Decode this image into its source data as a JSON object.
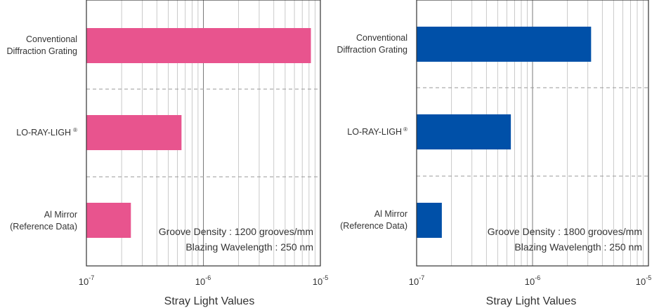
{
  "chart_data": [
    {
      "type": "bar",
      "orientation": "horizontal",
      "x_scale": "log",
      "xlim": [
        1e-07,
        1e-05
      ],
      "categories": [
        {
          "line1": "Conventional",
          "line2": "Diffraction Grating"
        },
        {
          "line1": "LO-RAY-LIGH",
          "sup": "®"
        },
        {
          "line1": "Al Mirror",
          "line2": "(Reference Data)"
        }
      ],
      "values": [
        8.3e-06,
        6.5e-07,
        2.4e-07
      ],
      "color": "#e8548e",
      "ticks": [
        {
          "base": "10",
          "exp": "-7"
        },
        {
          "base": "10",
          "exp": "-6"
        },
        {
          "base": "10",
          "exp": "-5"
        }
      ],
      "xlabel": "Stray Light Values",
      "annotation": [
        "Groove Density : 1200 grooves/mm",
        "Blazing Wavelength : 250 nm"
      ]
    },
    {
      "type": "bar",
      "orientation": "horizontal",
      "x_scale": "log",
      "xlim": [
        1e-07,
        1e-05
      ],
      "categories": [
        {
          "line1": "Conventional",
          "line2": "Diffraction Grating"
        },
        {
          "line1": "LO-RAY-LIGH",
          "sup": "®"
        },
        {
          "line1": "Al Mirror",
          "line2": "(Reference Data)"
        }
      ],
      "values": [
        3.2e-06,
        6.5e-07,
        1.65e-07
      ],
      "color": "#0050a8",
      "ticks": [
        {
          "base": "10",
          "exp": "-7"
        },
        {
          "base": "10",
          "exp": "-6"
        },
        {
          "base": "10",
          "exp": "-5"
        }
      ],
      "xlabel": "Stray Light Values",
      "annotation": [
        "Groove Density : 1800 grooves/mm",
        "Blazing Wavelength : 250 nm"
      ]
    }
  ]
}
